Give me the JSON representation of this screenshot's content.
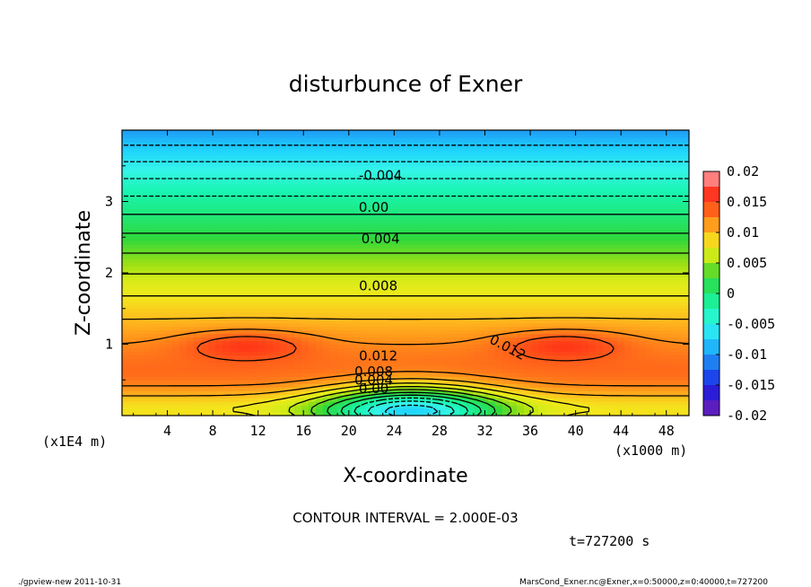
{
  "chart_data": {
    "type": "heatmap",
    "title": "disturbunce of Exner",
    "xlabel": "X-coordinate",
    "ylabel": "Z-coordinate",
    "x_unit": "(x1000 m)",
    "z_unit": "(x1E4 m)",
    "x_ticks": [
      "4",
      "8",
      "12",
      "16",
      "20",
      "24",
      "28",
      "32",
      "36",
      "40",
      "44",
      "48"
    ],
    "z_ticks": [
      "1",
      "2",
      "3"
    ],
    "xlim": [
      0,
      50
    ],
    "zlim": [
      0,
      4
    ],
    "colorbar": {
      "ticks": [
        "0.02",
        "0.015",
        "0.01",
        "0.005",
        "0",
        "-0.005",
        "-0.01",
        "-0.015",
        "-0.02"
      ],
      "range": [
        -0.02,
        0.02
      ]
    },
    "contour_labels": [
      {
        "text": "-0.004",
        "x": 22.8,
        "z": 3.36
      },
      {
        "text": "0.00",
        "x": 22.2,
        "z": 2.91
      },
      {
        "text": "0.004",
        "x": 22.8,
        "z": 2.47
      },
      {
        "text": "0.008",
        "x": 22.6,
        "z": 1.81
      },
      {
        "text": "0.012",
        "x": 22.6,
        "z": 0.83
      },
      {
        "text": "0.012",
        "x": 34.0,
        "z": 0.95
      },
      {
        "text": "0.008",
        "x": 22.2,
        "z": 0.61
      },
      {
        "text": "0.004",
        "x": 22.2,
        "z": 0.49
      },
      {
        "text": "0.00",
        "x": 22.2,
        "z": 0.37
      }
    ],
    "contour_interval_text": "CONTOUR INTERVAL = 2.000E-03",
    "time_text": "t=727200 s"
  },
  "footer": {
    "left": "./gpview-new  2011-10-31",
    "right": "MarsCond_Exner.nc@Exner,x=0:50000,z=0:40000,t=727200"
  }
}
